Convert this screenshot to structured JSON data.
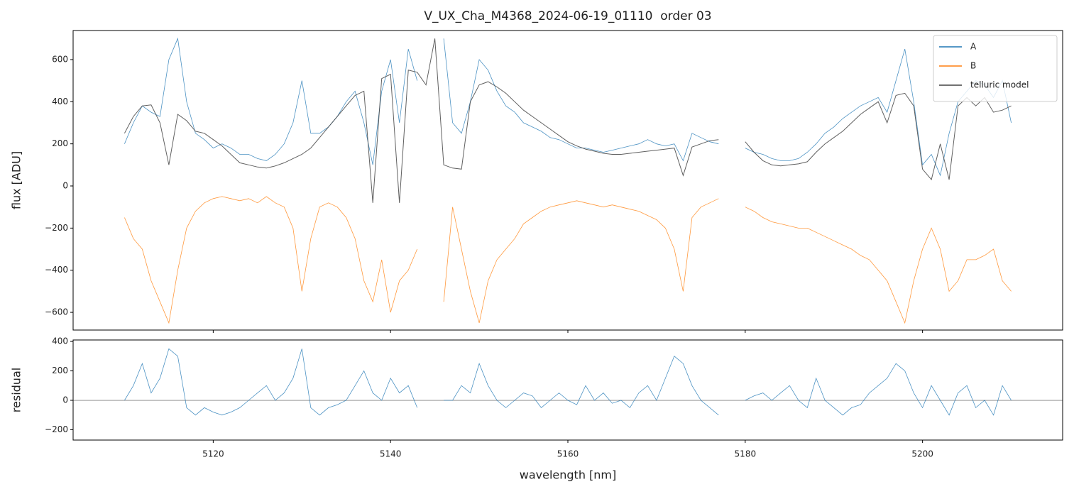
{
  "chart_data": [
    {
      "type": "line",
      "title": "V_UX_Cha_M4368_2024-06-19_01110  order 03",
      "y_label": "flux [ADU]",
      "legend": "upper right",
      "x": [
        5110,
        5111,
        5112,
        5113,
        5114,
        5115,
        5116,
        5117,
        5118,
        5119,
        5120,
        5121,
        5122,
        5123,
        5124,
        5125,
        5126,
        5127,
        5128,
        5129,
        5130,
        5131,
        5132,
        5133,
        5134,
        5135,
        5136,
        5137,
        5138,
        5139,
        5140,
        5141,
        5142,
        5143,
        5144,
        5145,
        5146,
        5147,
        5148,
        5149,
        5150,
        5151,
        5152,
        5153,
        5154,
        5155,
        5156,
        5157,
        5158,
        5159,
        5160,
        5161,
        5162,
        5163,
        5164,
        5165,
        5166,
        5167,
        5168,
        5169,
        5170,
        5171,
        5172,
        5173,
        5174,
        5175,
        5176,
        5177,
        5178,
        5179,
        5180,
        5181,
        5182,
        5183,
        5184,
        5185,
        5186,
        5187,
        5188,
        5189,
        5190,
        5191,
        5192,
        5193,
        5194,
        5195,
        5196,
        5197,
        5198,
        5199,
        5200,
        5201,
        5202,
        5203,
        5204,
        5205,
        5206,
        5207,
        5208,
        5209,
        5210
      ],
      "series": [
        {
          "name": "A",
          "color": "#1f77b4",
          "values": [
            200,
            300,
            380,
            350,
            330,
            600,
            700,
            400,
            250,
            220,
            180,
            200,
            180,
            150,
            150,
            130,
            120,
            150,
            200,
            300,
            500,
            250,
            250,
            280,
            330,
            400,
            450,
            300,
            100,
            450,
            600,
            300,
            650,
            500,
            null,
            null,
            700,
            300,
            250,
            400,
            600,
            550,
            450,
            380,
            350,
            300,
            280,
            260,
            230,
            220,
            200,
            180,
            180,
            170,
            160,
            170,
            180,
            190,
            200,
            220,
            200,
            190,
            200,
            120,
            250,
            230,
            210,
            200,
            null,
            null,
            180,
            160,
            150,
            130,
            120,
            120,
            130,
            160,
            200,
            250,
            280,
            320,
            350,
            380,
            400,
            420,
            350,
            500,
            650,
            400,
            100,
            150,
            50,
            250,
            400,
            450,
            500,
            480,
            420,
            500,
            300
          ]
        },
        {
          "name": "B",
          "color": "#ff7f0e",
          "values": [
            -150,
            -250,
            -300,
            -450,
            -550,
            -650,
            -400,
            -200,
            -120,
            -80,
            -60,
            -50,
            -60,
            -70,
            -60,
            -80,
            -50,
            -80,
            -100,
            -200,
            -500,
            -250,
            -100,
            -80,
            -100,
            -150,
            -250,
            -450,
            -550,
            -350,
            -600,
            -450,
            -400,
            -300,
            null,
            null,
            -550,
            -100,
            -300,
            -500,
            -650,
            -450,
            -350,
            -300,
            -250,
            -180,
            -150,
            -120,
            -100,
            -90,
            -80,
            -70,
            -80,
            -90,
            -100,
            -90,
            -100,
            -110,
            -120,
            -140,
            -160,
            -200,
            -300,
            -500,
            -150,
            -100,
            -80,
            -60,
            null,
            null,
            -100,
            -120,
            -150,
            -170,
            -180,
            -190,
            -200,
            -200,
            -220,
            -240,
            -260,
            -280,
            -300,
            -330,
            -350,
            -400,
            -450,
            -550,
            -650,
            -450,
            -300,
            -200,
            -300,
            -500,
            -450,
            -350,
            -350,
            -330,
            -300,
            -450,
            -500
          ]
        },
        {
          "name": "telluric model",
          "color": "#444444",
          "values": [
            250,
            330,
            380,
            385,
            300,
            100,
            340,
            310,
            260,
            250,
            220,
            190,
            150,
            110,
            100,
            90,
            85,
            95,
            110,
            130,
            150,
            180,
            230,
            280,
            330,
            380,
            430,
            450,
            -80,
            510,
            530,
            -80,
            550,
            540,
            480,
            700,
            100,
            85,
            80,
            400,
            480,
            495,
            470,
            440,
            400,
            360,
            330,
            300,
            270,
            240,
            210,
            190,
            175,
            165,
            155,
            150,
            150,
            155,
            160,
            165,
            170,
            175,
            180,
            50,
            185,
            200,
            215,
            220,
            null,
            null,
            210,
            160,
            120,
            100,
            95,
            100,
            105,
            115,
            160,
            200,
            230,
            260,
            300,
            340,
            370,
            400,
            300,
            430,
            440,
            380,
            80,
            30,
            200,
            30,
            380,
            420,
            380,
            420,
            350,
            360,
            380
          ]
        }
      ],
      "xlim": [
        5104.2,
        5215.8
      ],
      "xticks": [
        5120,
        5140,
        5160,
        5180,
        5200
      ],
      "ylim": [
        -684,
        738
      ],
      "yticks": [
        {
          "value": -600,
          "label": "−600"
        },
        {
          "value": -400,
          "label": "−400"
        },
        {
          "value": -200,
          "label": "−200"
        },
        0,
        200,
        400,
        600
      ]
    },
    {
      "type": "line",
      "x_label": "wavelength [nm]",
      "y_label": "residual",
      "axhline": 0,
      "x": [
        5110,
        5111,
        5112,
        5113,
        5114,
        5115,
        5116,
        5117,
        5118,
        5119,
        5120,
        5121,
        5122,
        5123,
        5124,
        5125,
        5126,
        5127,
        5128,
        5129,
        5130,
        5131,
        5132,
        5133,
        5134,
        5135,
        5136,
        5137,
        5138,
        5139,
        5140,
        5141,
        5142,
        5143,
        5144,
        5145,
        5146,
        5147,
        5148,
        5149,
        5150,
        5151,
        5152,
        5153,
        5154,
        5155,
        5156,
        5157,
        5158,
        5159,
        5160,
        5161,
        5162,
        5163,
        5164,
        5165,
        5166,
        5167,
        5168,
        5169,
        5170,
        5171,
        5172,
        5173,
        5174,
        5175,
        5176,
        5177,
        5178,
        5179,
        5180,
        5181,
        5182,
        5183,
        5184,
        5185,
        5186,
        5187,
        5188,
        5189,
        5190,
        5191,
        5192,
        5193,
        5194,
        5195,
        5196,
        5197,
        5198,
        5199,
        5200,
        5201,
        5202,
        5203,
        5204,
        5205,
        5206,
        5207,
        5208,
        5209,
        5210
      ],
      "series": [
        {
          "color": "#1f77b4",
          "values": [
            0,
            100,
            250,
            50,
            150,
            350,
            300,
            -50,
            -100,
            -50,
            -80,
            -100,
            -80,
            -50,
            0,
            50,
            100,
            0,
            50,
            150,
            350,
            -50,
            -100,
            -50,
            -30,
            0,
            100,
            200,
            50,
            0,
            150,
            50,
            100,
            -50,
            null,
            null,
            0,
            0,
            100,
            50,
            250,
            100,
            0,
            -50,
            0,
            50,
            30,
            -50,
            0,
            50,
            0,
            -30,
            100,
            0,
            50,
            -20,
            0,
            -50,
            50,
            100,
            0,
            150,
            300,
            250,
            100,
            0,
            -50,
            -100,
            null,
            null,
            0,
            30,
            50,
            0,
            50,
            100,
            0,
            -50,
            150,
            0,
            -50,
            -100,
            -50,
            -30,
            50,
            100,
            150,
            250,
            200,
            50,
            -50,
            100,
            0,
            -100,
            50,
            100,
            -50,
            0,
            -100,
            100,
            0
          ]
        }
      ],
      "xlim": [
        5104.2,
        5215.8
      ],
      "xticks": [
        5120,
        5140,
        5160,
        5180,
        5200
      ],
      "ylim": [
        -270,
        410
      ],
      "yticks": [
        {
          "value": -200,
          "label": "−200"
        },
        0,
        200,
        400
      ]
    }
  ]
}
